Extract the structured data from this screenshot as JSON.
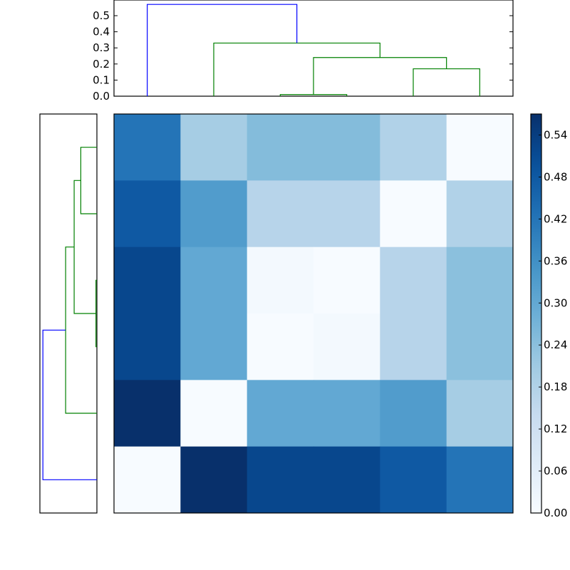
{
  "chart_data": [
    {
      "type": "heatmap",
      "title": "",
      "xlabel": "",
      "ylabel": "",
      "rows": 6,
      "cols": 6,
      "colormap": "Blues",
      "values": [
        [
          0.42,
          0.2,
          0.25,
          0.25,
          0.18,
          0.0
        ],
        [
          0.48,
          0.33,
          0.17,
          0.17,
          0.0,
          0.18
        ],
        [
          0.52,
          0.3,
          0.01,
          0.0,
          0.17,
          0.24
        ],
        [
          0.52,
          0.3,
          0.0,
          0.01,
          0.17,
          0.24
        ],
        [
          0.57,
          0.0,
          0.3,
          0.3,
          0.33,
          0.2
        ],
        [
          0.0,
          0.57,
          0.52,
          0.52,
          0.48,
          0.42
        ]
      ],
      "vmin": 0.0,
      "vmax": 0.57,
      "colorbar": {
        "ticks": [
          "0.00",
          "0.06",
          "0.12",
          "0.18",
          "0.24",
          "0.30",
          "0.36",
          "0.42",
          "0.48",
          "0.54"
        ],
        "tick_values": [
          0.0,
          0.06,
          0.12,
          0.18,
          0.24,
          0.3,
          0.36,
          0.42,
          0.48,
          0.54
        ]
      }
    },
    {
      "type": "dendrogram",
      "orientation": "top",
      "ylim": [
        0.0,
        0.58
      ],
      "yticks": [
        "0.0",
        "0.1",
        "0.2",
        "0.3",
        "0.4",
        "0.5"
      ],
      "ytick_values": [
        0.0,
        0.1,
        0.2,
        0.3,
        0.4,
        0.5
      ],
      "leaves": 6,
      "links": [
        {
          "left": 2,
          "right": 3,
          "height": 0.01,
          "color": "green"
        },
        {
          "left": 4,
          "right": 5,
          "height": 0.17,
          "color": "green"
        },
        {
          "left": "(2,3)",
          "right": "(4,5)",
          "height": 0.24,
          "color": "green"
        },
        {
          "left": 1,
          "right": "(2,3,4,5)",
          "height": 0.33,
          "color": "green"
        },
        {
          "left": 0,
          "right": "(1,2,3,4,5)",
          "height": 0.57,
          "color": "blue"
        }
      ]
    },
    {
      "type": "dendrogram",
      "orientation": "left",
      "leaves": 6,
      "links": [
        {
          "left": 2,
          "right": 3,
          "height": 0.01,
          "color": "green"
        },
        {
          "left": 0,
          "right": 1,
          "height": 0.17,
          "color": "green"
        },
        {
          "left": "(0,1)",
          "right": "(2,3)",
          "height": 0.24,
          "color": "green"
        },
        {
          "left": "(0,1,2,3)",
          "right": 4,
          "height": 0.33,
          "color": "green"
        },
        {
          "left": "(0,1,2,3,4)",
          "right": 5,
          "height": 0.57,
          "color": "blue"
        }
      ]
    }
  ],
  "colors": {
    "cluster_green": "#008000",
    "cluster_blue": "#0000ff",
    "axes_frame": "#000000"
  }
}
